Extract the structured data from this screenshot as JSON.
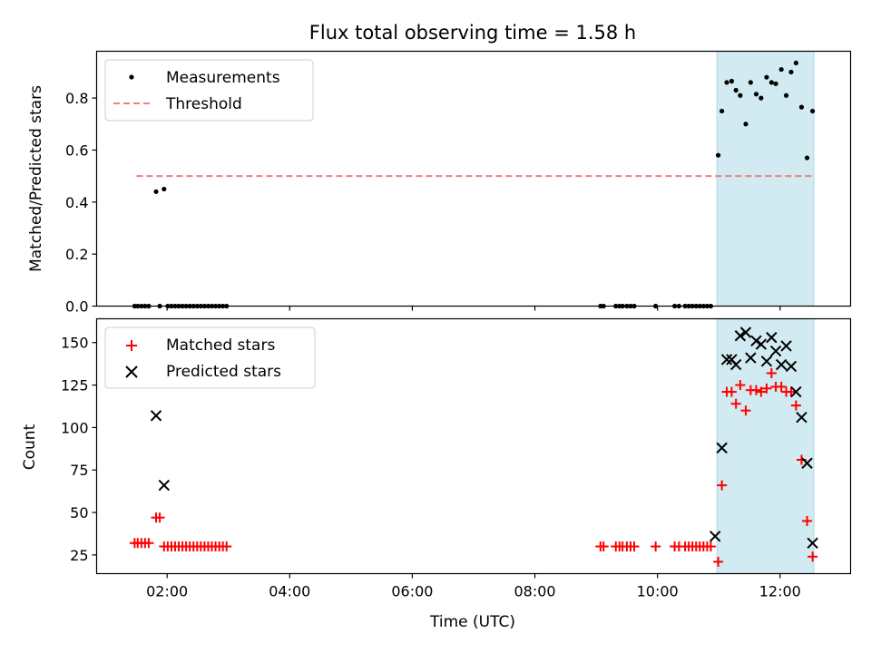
{
  "chart_data": [
    {
      "type": "scatter",
      "panel": "top",
      "title": "Flux total observing time = 1.58 h",
      "xlabel": "",
      "ylabel": "Matched/Predicted stars",
      "x_unit": "hours (UTC)",
      "xlim": [
        0.85,
        13.15
      ],
      "ylim": [
        0,
        0.98
      ],
      "yticks": [
        0.0,
        0.2,
        0.4,
        0.6,
        0.8
      ],
      "ytick_labels": [
        "0.0",
        "0.2",
        "0.4",
        "0.6",
        "0.8"
      ],
      "highlight_span": {
        "x0": 10.97,
        "x1": 12.55,
        "color": "#add8e6"
      },
      "legend_position": "upper-left",
      "series": [
        {
          "name": "Measurements",
          "marker": "dot",
          "color": "#000000",
          "x": [
            1.47,
            1.52,
            1.58,
            1.64,
            1.7,
            1.82,
            1.88,
            1.95,
            2.01,
            2.07,
            2.13,
            2.19,
            2.25,
            2.31,
            2.37,
            2.43,
            2.49,
            2.55,
            2.61,
            2.67,
            2.73,
            2.79,
            2.85,
            2.91,
            2.97,
            9.07,
            9.12,
            9.32,
            9.38,
            9.43,
            9.5,
            9.56,
            9.62,
            9.97,
            10.28,
            10.35,
            10.45,
            10.51,
            10.57,
            10.63,
            10.69,
            10.75,
            10.81,
            10.87,
            10.99,
            11.05,
            11.13,
            11.21,
            11.28,
            11.35,
            11.44,
            11.52,
            11.61,
            11.69,
            11.78,
            11.86,
            11.93,
            12.02,
            12.1,
            12.18,
            12.26,
            12.35,
            12.44,
            12.53
          ],
          "y": [
            0,
            0,
            0,
            0,
            0,
            0.44,
            0,
            0.45,
            0,
            0,
            0,
            0,
            0,
            0,
            0,
            0,
            0,
            0,
            0,
            0,
            0,
            0,
            0,
            0,
            0,
            0,
            0,
            0,
            0,
            0,
            0,
            0,
            0,
            0,
            0,
            0,
            0,
            0,
            0,
            0,
            0,
            0,
            0,
            0,
            0.58,
            0.75,
            0.86,
            0.865,
            0.83,
            0.81,
            0.7,
            0.86,
            0.815,
            0.8,
            0.88,
            0.86,
            0.855,
            0.91,
            0.81,
            0.9,
            0.935,
            0.765,
            0.57,
            0.75
          ]
        },
        {
          "name": "Threshold",
          "marker": "dashed-line",
          "color": "#f08080",
          "x": [
            1.5,
            12.55
          ],
          "y": [
            0.5,
            0.5
          ]
        }
      ]
    },
    {
      "type": "scatter",
      "panel": "bottom",
      "title": "",
      "xlabel": "Time (UTC)",
      "ylabel": "Count",
      "x_unit": "hours (UTC)",
      "xlim": [
        0.85,
        13.15
      ],
      "ylim": [
        14,
        164
      ],
      "xticks": [
        2,
        4,
        6,
        8,
        10,
        12
      ],
      "xtick_labels": [
        "02:00",
        "04:00",
        "06:00",
        "08:00",
        "10:00",
        "12:00"
      ],
      "yticks": [
        25,
        50,
        75,
        100,
        125,
        150
      ],
      "ytick_labels": [
        "25",
        "50",
        "75",
        "100",
        "125",
        "150"
      ],
      "highlight_span": {
        "x0": 10.97,
        "x1": 12.55,
        "color": "#add8e6"
      },
      "legend_position": "upper-left",
      "series": [
        {
          "name": "Matched stars",
          "marker": "plus",
          "color": "#ff0000",
          "x": [
            1.47,
            1.52,
            1.58,
            1.64,
            1.7,
            1.82,
            1.88,
            1.95,
            2.01,
            2.07,
            2.13,
            2.19,
            2.25,
            2.31,
            2.37,
            2.43,
            2.49,
            2.55,
            2.61,
            2.67,
            2.73,
            2.79,
            2.85,
            2.91,
            2.97,
            9.07,
            9.12,
            9.32,
            9.38,
            9.43,
            9.5,
            9.56,
            9.62,
            9.97,
            10.28,
            10.35,
            10.45,
            10.51,
            10.57,
            10.63,
            10.69,
            10.75,
            10.81,
            10.87,
            10.99,
            11.05,
            11.13,
            11.21,
            11.28,
            11.35,
            11.44,
            11.52,
            11.61,
            11.69,
            11.78,
            11.86,
            11.93,
            12.02,
            12.1,
            12.18,
            12.26,
            12.35,
            12.44,
            12.53
          ],
          "y": [
            32,
            32,
            32,
            32,
            32,
            47,
            47,
            30,
            30,
            30,
            30,
            30,
            30,
            30,
            30,
            30,
            30,
            30,
            30,
            30,
            30,
            30,
            30,
            30,
            30,
            30,
            30,
            30,
            30,
            30,
            30,
            30,
            30,
            30,
            30,
            30,
            30,
            30,
            30,
            30,
            30,
            30,
            30,
            30,
            21,
            66,
            121,
            121,
            114,
            125,
            110,
            122,
            122,
            121,
            123,
            132,
            124,
            124,
            121,
            121,
            113,
            81,
            45,
            24
          ]
        },
        {
          "name": "Predicted stars",
          "marker": "x",
          "color": "#000000",
          "x": [
            1.82,
            1.95,
            10.94,
            11.05,
            11.13,
            11.21,
            11.28,
            11.35,
            11.44,
            11.52,
            11.61,
            11.69,
            11.78,
            11.86,
            11.93,
            12.02,
            12.1,
            12.18,
            12.26,
            12.35,
            12.44,
            12.53
          ],
          "y": [
            107,
            66,
            36,
            88,
            140,
            140,
            137,
            154,
            156,
            141,
            151,
            149,
            139,
            153,
            145,
            137,
            148,
            136,
            121,
            106,
            79,
            32
          ]
        }
      ]
    }
  ]
}
